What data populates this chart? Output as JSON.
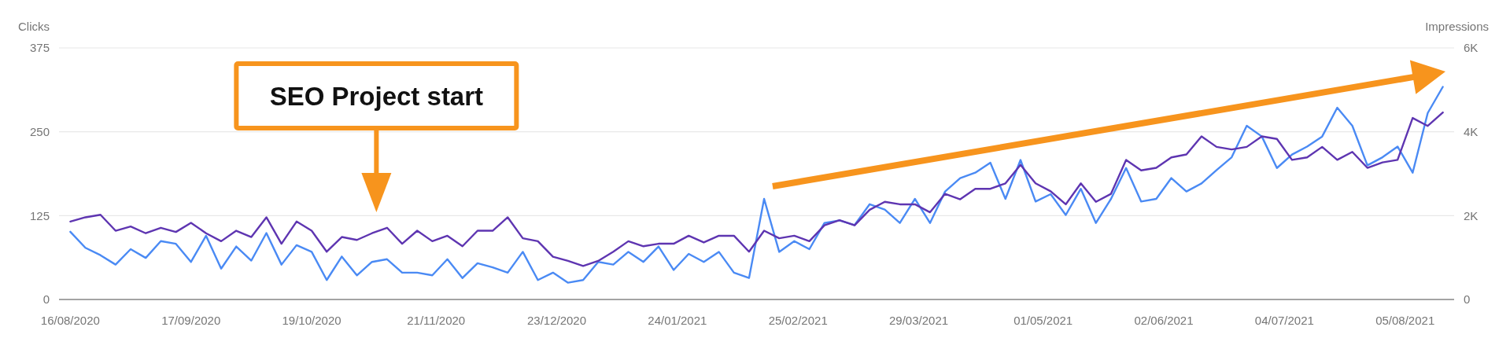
{
  "chart_data": {
    "type": "line",
    "ylabel": "Clicks",
    "y2label": "Impressions",
    "x": [
      "2020-08-16",
      "2020-08-20",
      "2020-08-24",
      "2020-08-28",
      "2020-09-01",
      "2020-09-05",
      "2020-09-09",
      "2020-09-13",
      "2020-09-17",
      "2020-09-21",
      "2020-09-25",
      "2020-09-29",
      "2020-10-03",
      "2020-10-07",
      "2020-10-11",
      "2020-10-15",
      "2020-10-19",
      "2020-10-23",
      "2020-10-27",
      "2020-10-31",
      "2020-11-04",
      "2020-11-08",
      "2020-11-12",
      "2020-11-16",
      "2020-11-20",
      "2020-11-24",
      "2020-11-28",
      "2020-12-02",
      "2020-12-06",
      "2020-12-10",
      "2020-12-14",
      "2020-12-18",
      "2020-12-22",
      "2020-12-26",
      "2020-12-30",
      "2021-01-03",
      "2021-01-07",
      "2021-01-11",
      "2021-01-15",
      "2021-01-19",
      "2021-01-23",
      "2021-01-27",
      "2021-01-31",
      "2021-02-04",
      "2021-02-08",
      "2021-02-12",
      "2021-02-16",
      "2021-02-20",
      "2021-02-24",
      "2021-02-28",
      "2021-03-04",
      "2021-03-08",
      "2021-03-12",
      "2021-03-16",
      "2021-03-20",
      "2021-03-24",
      "2021-03-28",
      "2021-04-01",
      "2021-04-05",
      "2021-04-09",
      "2021-04-13",
      "2021-04-17",
      "2021-04-21",
      "2021-04-25",
      "2021-04-29",
      "2021-05-03",
      "2021-05-07",
      "2021-05-11",
      "2021-05-15",
      "2021-05-19",
      "2021-05-23",
      "2021-05-27",
      "2021-05-31",
      "2021-06-04",
      "2021-06-08",
      "2021-06-12",
      "2021-06-16",
      "2021-06-20",
      "2021-06-24",
      "2021-06-28",
      "2021-07-02",
      "2021-07-06",
      "2021-07-10",
      "2021-07-14",
      "2021-07-18",
      "2021-07-22",
      "2021-07-26",
      "2021-07-30",
      "2021-08-03",
      "2021-08-07",
      "2021-08-11",
      "2021-08-15"
    ],
    "series": [
      {
        "color": "#4a8af4",
        "values": [
          101,
          77,
          66,
          52,
          75,
          62,
          87,
          83,
          56,
          95,
          46,
          79,
          58,
          99,
          52,
          81,
          71,
          29,
          64,
          36,
          56,
          60,
          40,
          40,
          36,
          60,
          32,
          54,
          48,
          40,
          71,
          29,
          40,
          25,
          29,
          56,
          52,
          71,
          56,
          79,
          44,
          68,
          56,
          71,
          40,
          32,
          150,
          71,
          87,
          75,
          114,
          118,
          111,
          142,
          134,
          114,
          150,
          114,
          161,
          181,
          189,
          204,
          150,
          208,
          146,
          157,
          126,
          165,
          114,
          150,
          196,
          146,
          150,
          181,
          161,
          173,
          193,
          212,
          259,
          243,
          196,
          216,
          228,
          243,
          286,
          259,
          200,
          212,
          228,
          189,
          278,
          317
        ]
      },
      {
        "color": "#5e35b1",
        "axis": "y2",
        "values": [
          1860,
          1960,
          2020,
          1640,
          1740,
          1580,
          1710,
          1610,
          1830,
          1580,
          1390,
          1640,
          1490,
          1960,
          1330,
          1860,
          1640,
          1140,
          1490,
          1420,
          1580,
          1710,
          1330,
          1640,
          1390,
          1520,
          1270,
          1640,
          1640,
          1960,
          1460,
          1390,
          1020,
          920,
          800,
          920,
          1140,
          1390,
          1270,
          1330,
          1330,
          1520,
          1360,
          1520,
          1520,
          1140,
          1640,
          1460,
          1520,
          1390,
          1770,
          1890,
          1770,
          2140,
          2330,
          2270,
          2270,
          2080,
          2520,
          2390,
          2640,
          2640,
          2770,
          3210,
          2770,
          2580,
          2270,
          2770,
          2330,
          2520,
          3330,
          3080,
          3140,
          3390,
          3460,
          3890,
          3640,
          3580,
          3640,
          3890,
          3830,
          3330,
          3390,
          3640,
          3330,
          3520,
          3140,
          3270,
          3330,
          4330,
          4140,
          4460
        ]
      }
    ],
    "xlim": [
      "2020-08-13",
      "2021-08-18"
    ],
    "xticks": [
      {
        "value": "2020-08-16",
        "label": "16/08/2020"
      },
      {
        "value": "2020-09-17",
        "label": "17/09/2020"
      },
      {
        "value": "2020-10-19",
        "label": "19/10/2020"
      },
      {
        "value": "2020-11-21",
        "label": "21/11/2020"
      },
      {
        "value": "2020-12-23",
        "label": "23/12/2020"
      },
      {
        "value": "2021-01-24",
        "label": "24/01/2021"
      },
      {
        "value": "2021-02-25",
        "label": "25/02/2021"
      },
      {
        "value": "2021-03-29",
        "label": "29/03/2021"
      },
      {
        "value": "2021-05-01",
        "label": "01/05/2021"
      },
      {
        "value": "2021-06-02",
        "label": "02/06/2021"
      },
      {
        "value": "2021-07-04",
        "label": "04/07/2021"
      },
      {
        "value": "2021-08-05",
        "label": "05/08/2021"
      }
    ],
    "ylim": [
      0,
      375
    ],
    "yticks": [
      0,
      125,
      250,
      375
    ],
    "y2lim": [
      0,
      6000
    ],
    "y2ticks": [
      0,
      {
        "value": 2000,
        "label": "2K"
      },
      {
        "value": 4000,
        "label": "4K"
      },
      {
        "value": 6000,
        "label": "6K"
      }
    ],
    "grid": "y",
    "annotations": [
      "SEO Project start"
    ]
  }
}
